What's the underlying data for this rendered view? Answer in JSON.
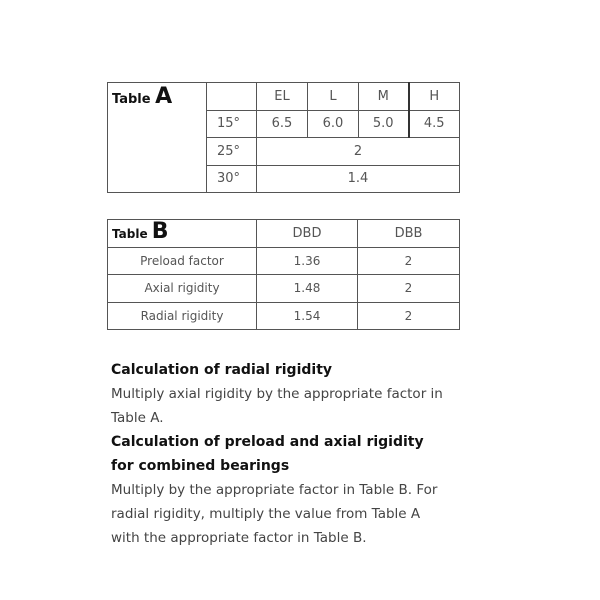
{
  "table_a": {
    "title_prefix": "Table",
    "title_letter": "A",
    "columns": [
      "EL",
      "L",
      "M",
      "H"
    ],
    "rows": [
      {
        "angle": "15°",
        "values": [
          "6.5",
          "6.0",
          "5.0",
          "4.5"
        ]
      },
      {
        "angle": "25°",
        "value": "2"
      },
      {
        "angle": "30°",
        "value": "1.4"
      }
    ]
  },
  "table_b": {
    "title_prefix": "Table",
    "title_letter": "B",
    "columns": [
      "DBD",
      "DBB"
    ],
    "rows": [
      {
        "label": "Preload factor",
        "values": [
          "1.36",
          "2"
        ]
      },
      {
        "label": "Axial rigidity",
        "values": [
          "1.48",
          "2"
        ]
      },
      {
        "label": "Radial rigidity",
        "values": [
          "1.54",
          "2"
        ]
      }
    ]
  },
  "text": {
    "heading1": "Calculation of radial rigidity",
    "body1": "Multiply axial rigidity by the appropriate factor in Table A.",
    "heading2": "Calculation of preload and axial rigidity for combined bearings",
    "body2": "Multiply by the appropriate factor in Table B. For radial rigidity, multiply the value from Table A with the appropriate factor in Table B."
  }
}
